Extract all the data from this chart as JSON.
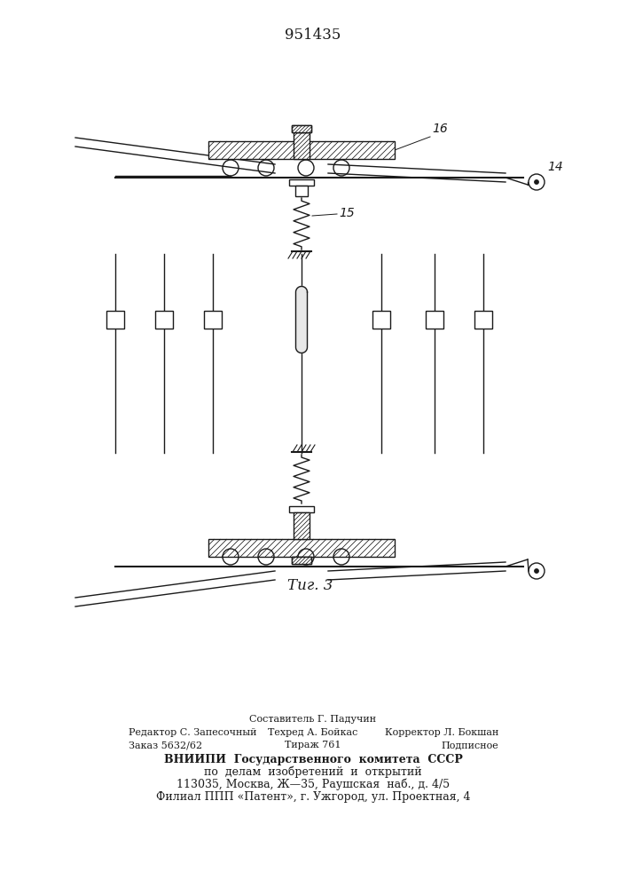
{
  "patent_number": "951435",
  "fig_label": "Τиг. 3",
  "label_16": "16",
  "label_14": "14",
  "label_15": "15",
  "bg_color": "#ffffff",
  "line_color": "#1a1a1a"
}
